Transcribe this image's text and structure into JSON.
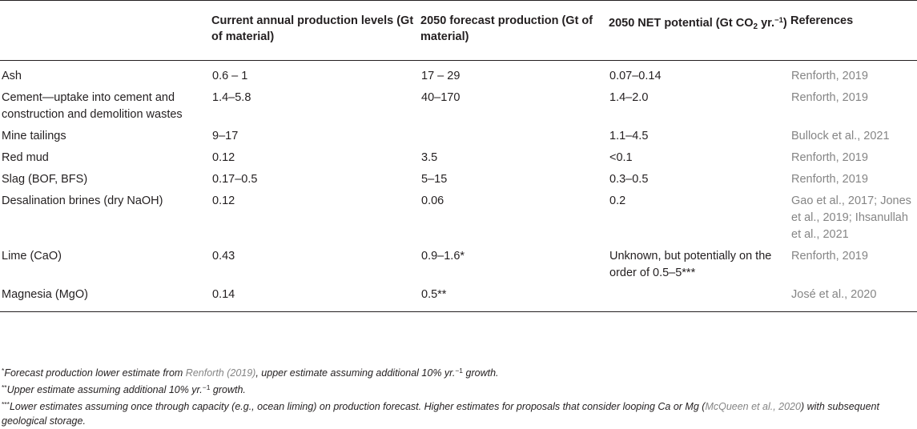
{
  "header": {
    "c0": "",
    "c1": "Current annual production levels (Gt of material)",
    "c2": "2050 forecast production (Gt of material)",
    "c3_a": "2050 NET potential (Gt CO",
    "c3_sub": "2",
    "c3_b": " yr.",
    "c3_sup": "−1",
    "c3_c": ")",
    "c4": "References"
  },
  "rows": [
    {
      "material": "Ash",
      "current": "0.6 – 1",
      "forecast": "17 – 29",
      "potential": "0.07–0.14",
      "ref": "Renforth, 2019"
    },
    {
      "material": "Cement—uptake into cement and construction and demolition wastes",
      "current": "1.4–5.8",
      "forecast": "40–170",
      "potential": "1.4–2.0",
      "ref": "Renforth, 2019"
    },
    {
      "material": "Mine tailings",
      "current": "9–17",
      "forecast": "",
      "potential": "1.1–4.5",
      "ref": "Bullock et al., 2021"
    },
    {
      "material": "Red mud",
      "current": "0.12",
      "forecast": "3.5",
      "potential": "<0.1",
      "ref": "Renforth, 2019"
    },
    {
      "material": "Slag (BOF, BFS)",
      "current": "0.17–0.5",
      "forecast": "5–15",
      "potential": "0.3–0.5",
      "ref": "Renforth, 2019"
    },
    {
      "material": "Desalination brines (dry NaOH)",
      "current": "0.12",
      "forecast": "0.06",
      "potential": "0.2",
      "ref": "Gao et al., 2017; Jones et al., 2019; Ihsanullah et al., 2021"
    },
    {
      "material": "Lime (CaO)",
      "current": "0.43",
      "forecast": "0.9–1.6*",
      "potential": "Unknown, but potentially on the order of 0.5–5***",
      "ref": "Renforth, 2019"
    },
    {
      "material": "Magnesia (MgO)",
      "current": "0.14",
      "forecast": "0.5**",
      "potential": "",
      "ref": "José et al., 2020"
    }
  ],
  "footnotes": {
    "n1": {
      "mark": "*",
      "a": "Forecast production lower estimate from ",
      "link": "Renforth (2019)",
      "b": ", upper estimate assuming additional 10% yr.",
      "sup": "−1",
      "c": " growth."
    },
    "n2": {
      "mark": "**",
      "a": "Upper estimate assuming additional 10% yr.",
      "sup": "−1",
      "b": " growth."
    },
    "n3": {
      "mark": "***",
      "a": "Lower estimates assuming once through capacity (e.g., ocean liming) on production forecast. Higher estimates for proposals that consider looping Ca or Mg (",
      "link": "McQueen et al., 2020",
      "b": ") with subsequent geological storage."
    }
  }
}
